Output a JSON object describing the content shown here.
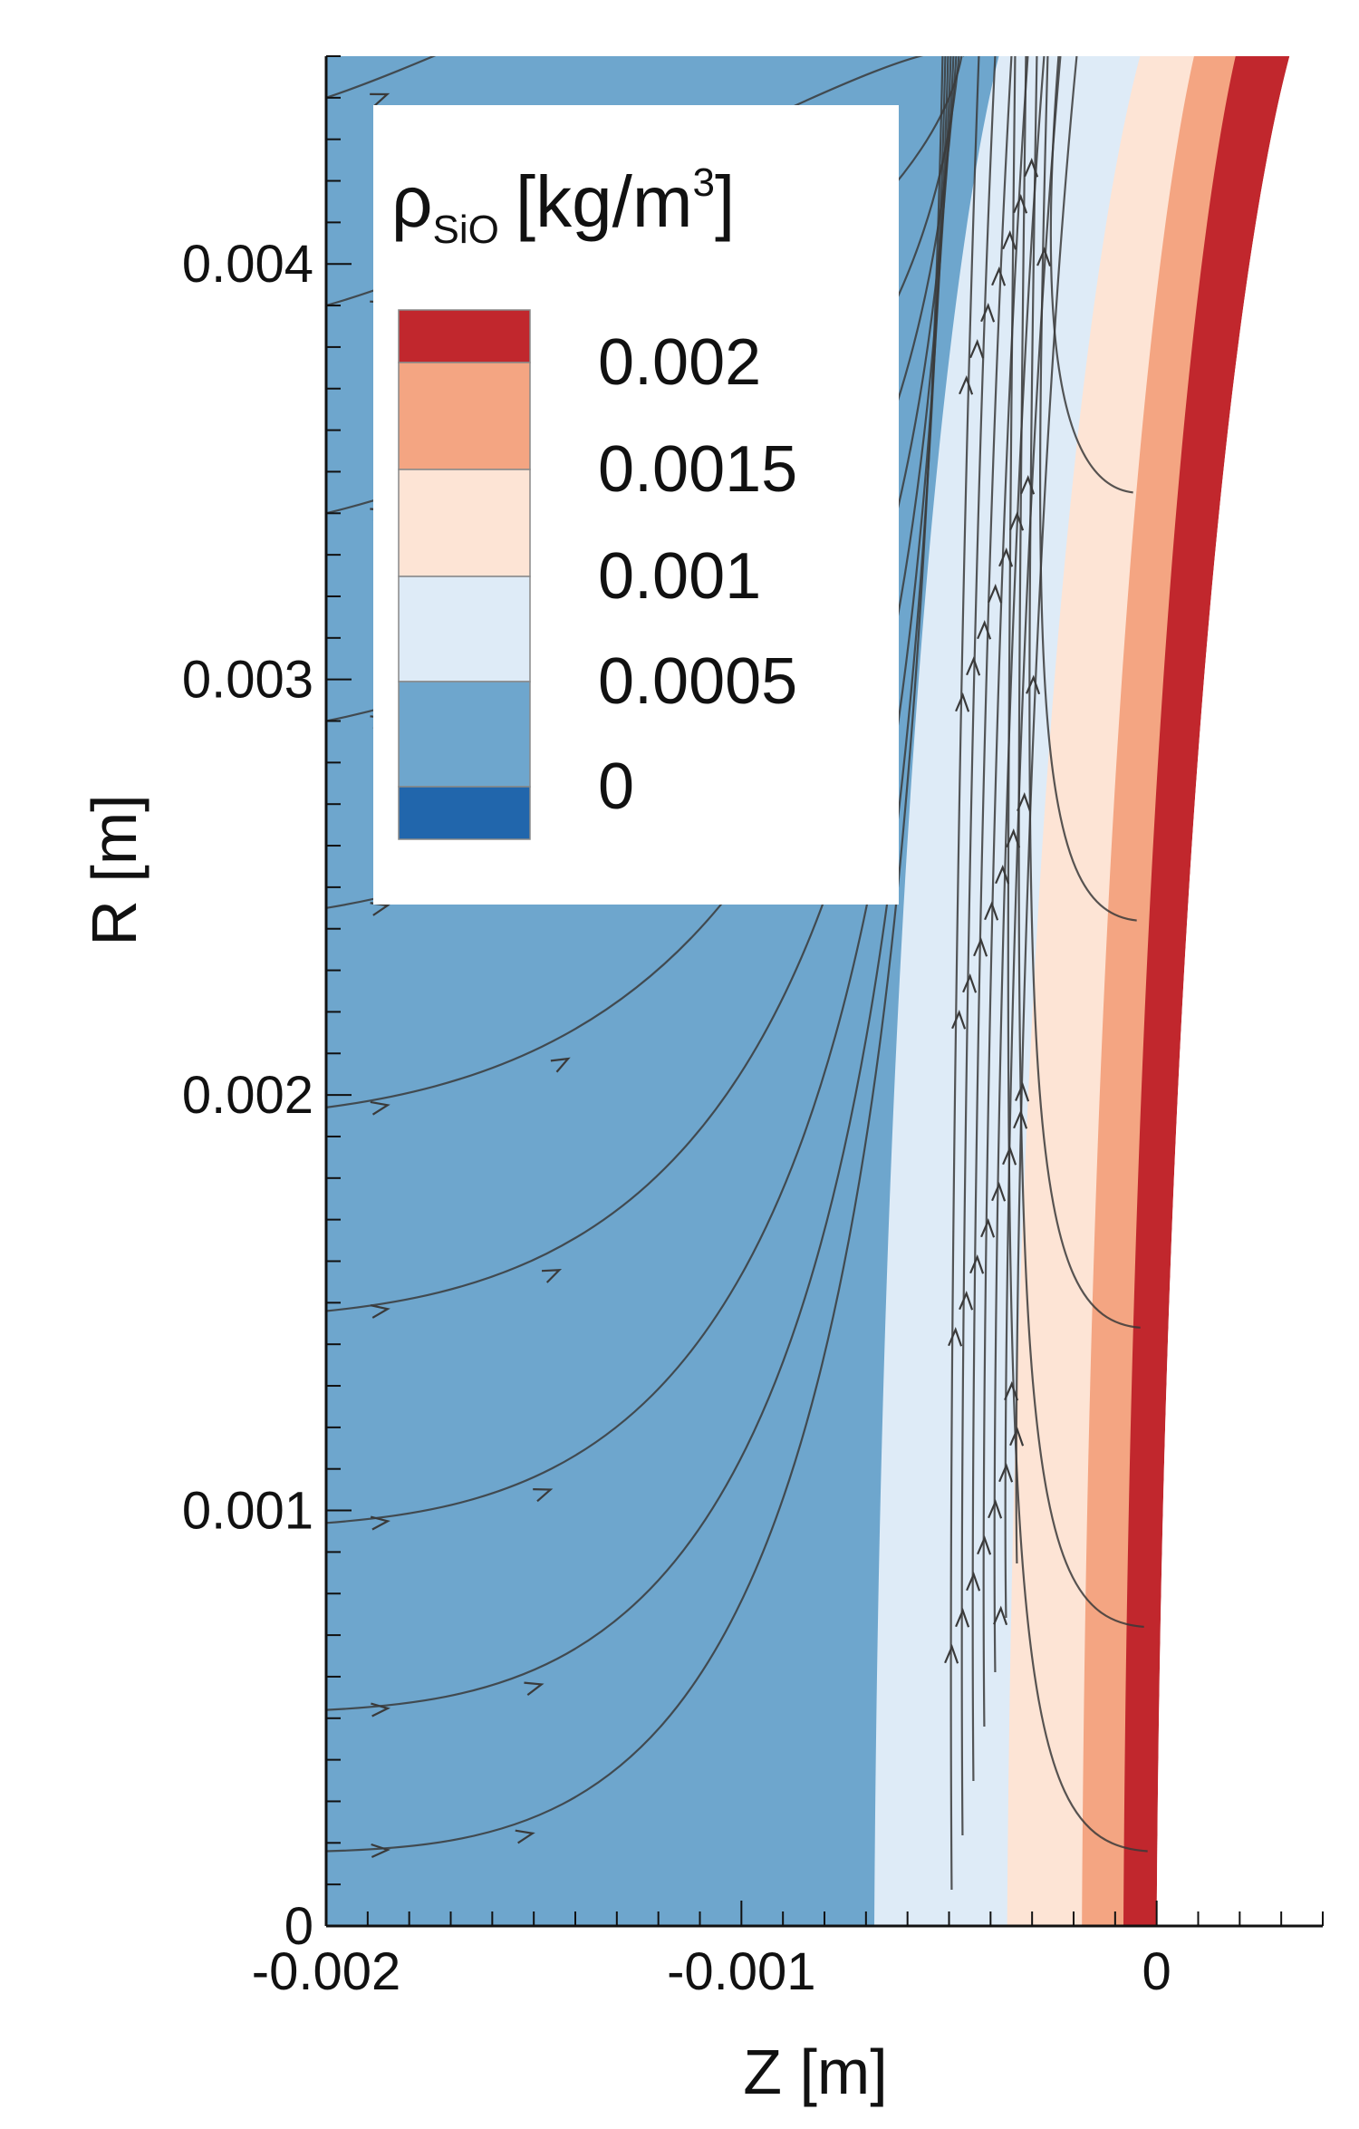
{
  "chart_data": {
    "type": "contour",
    "x": {
      "label": "Z [m]",
      "range": [
        -0.002,
        0.0004
      ],
      "ticks": [
        -0.002,
        -0.001,
        0
      ],
      "tick_labels": [
        "-0.002",
        "-0.001",
        "0"
      ]
    },
    "y": {
      "label": "R [m]",
      "range": [
        0,
        0.0045
      ],
      "ticks": [
        0,
        0.001,
        0.002,
        0.003,
        0.004
      ],
      "tick_labels": [
        "0",
        "0.001",
        "0.002",
        "0.003",
        "0.004"
      ]
    },
    "legend": {
      "title": "ρ",
      "title_sub": "SiO",
      "title_unit": "[kg/m",
      "title_sup": "3",
      "title_end": "]",
      "placement": "top-left",
      "levels": [
        "0.002",
        "0.0015",
        "0.001",
        "0.0005",
        "0"
      ],
      "colors": [
        "#c1272d",
        "#f4a582",
        "#fde4d5",
        "#deebf7",
        "#6ea6cd",
        "#2166ac"
      ]
    },
    "contour_bands": [
      {
        "color": "#6ea6cd",
        "range": "0 – 0.0005"
      },
      {
        "color": "#deebf7",
        "range": "0.0005 – 0.001"
      },
      {
        "color": "#fde4d5",
        "range": "0.001 – 0.0015"
      },
      {
        "color": "#f4a582",
        "range": "0.0015 – 0.002"
      },
      {
        "color": "#c1272d",
        "range": "> 0.002"
      }
    ],
    "boundaries_bottom_z": [
      -0.00068,
      -0.00036,
      -0.00018,
      -8e-05,
      0
    ],
    "boundaries_top_z": [
      -0.00038,
      -4e-05,
      9e-05,
      0.00019,
      0.00032
    ],
    "streamlines_from_left_r": [
      0.00018,
      0.00052,
      0.00097,
      0.00148,
      0.00197,
      0.00245,
      0.0029,
      0.0034,
      0.0039,
      0.0044
    ],
    "streamlines_from_wall_r": [
      0.00018,
      0.00072,
      0.00144,
      0.00242,
      0.00345
    ]
  }
}
